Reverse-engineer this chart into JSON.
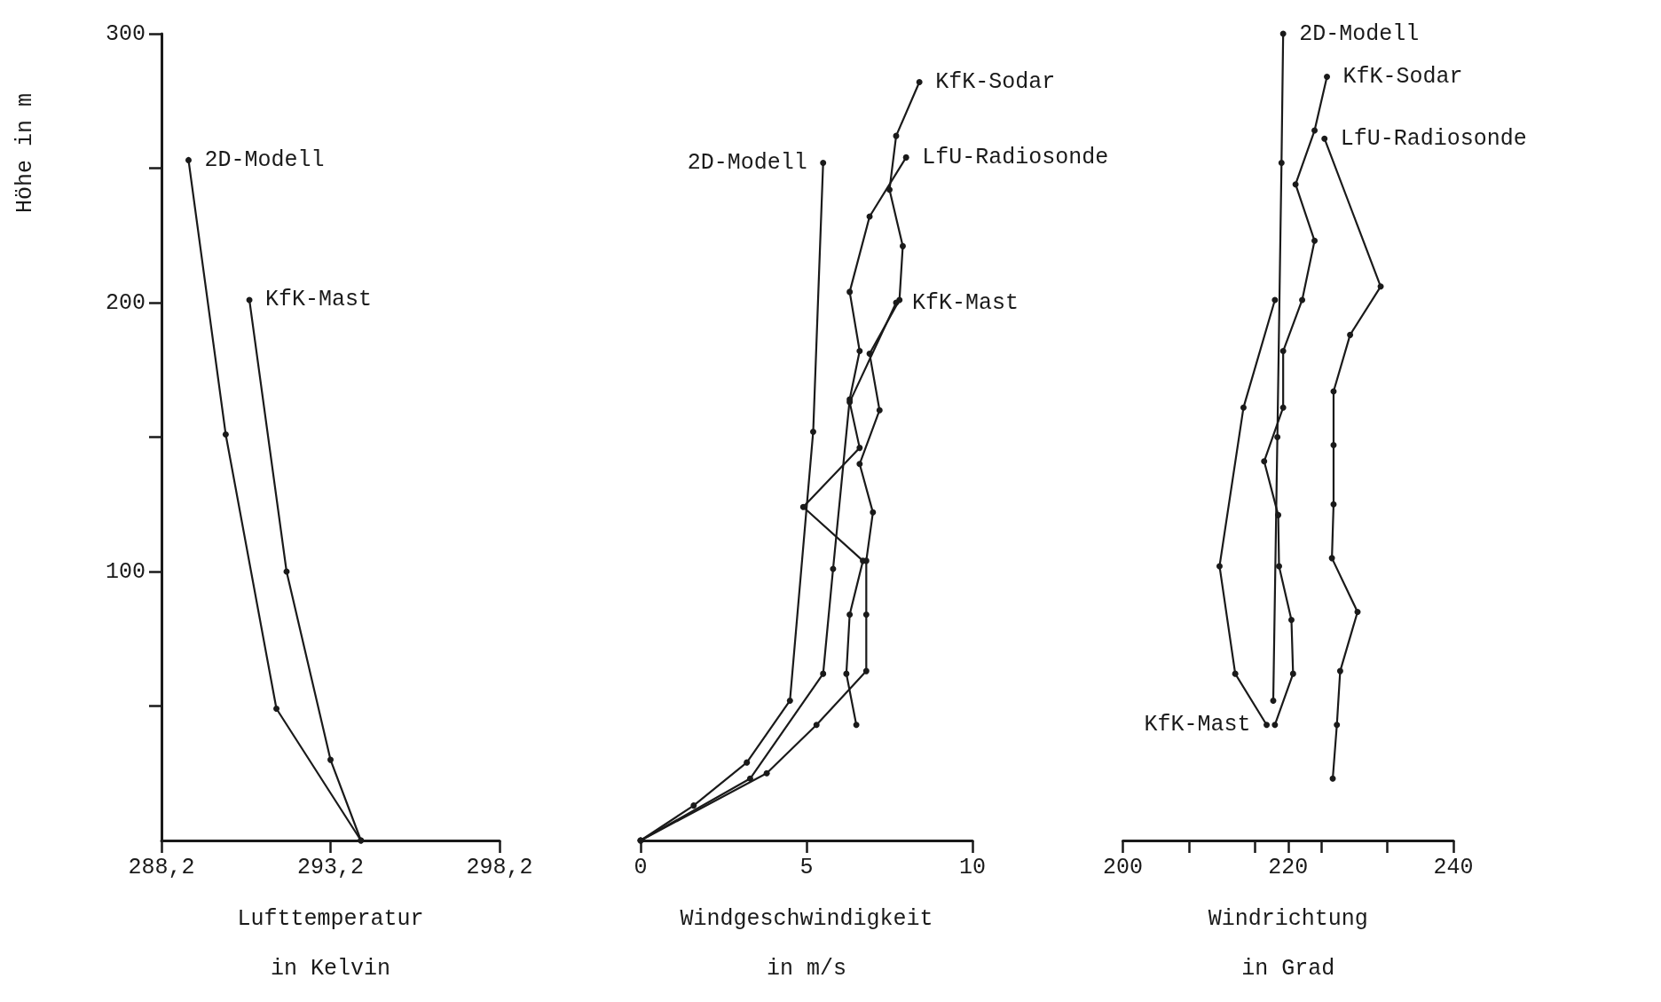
{
  "chart_data": [
    {
      "type": "line",
      "xlabel": "Lufttemperatur\nin Kelvin",
      "ylabel": "Höhe in m",
      "xlim": [
        288.2,
        298.2
      ],
      "xticks": [
        {
          "value": 288.2,
          "label": "288,2"
        },
        {
          "value": 293.2,
          "label": "293,2"
        },
        {
          "value": 298.2,
          "label": "298,2"
        }
      ],
      "ylim": [
        0,
        300
      ],
      "yticks": [
        {
          "value": 50,
          "label": null
        },
        100,
        {
          "value": 150,
          "label": null
        },
        200,
        {
          "value": 250,
          "label": null
        },
        300
      ],
      "marker": "circle",
      "grid": false,
      "legend": false,
      "series": [
        {
          "name": "2D-Modell",
          "color": "#1a1a1a",
          "x": [
            294.1,
            291.6,
            290.1,
            289.0
          ],
          "values": [
            0,
            49,
            151,
            253
          ]
        },
        {
          "name": "KfK-Mast",
          "color": "#1a1a1a",
          "x": [
            294.1,
            293.2,
            291.9,
            290.8
          ],
          "values": [
            0,
            30,
            100,
            201
          ]
        }
      ]
    },
    {
      "type": "line",
      "xlabel": "Windgeschwindigkeit\nin m/s",
      "xlim": [
        0,
        10
      ],
      "xticks": [
        0,
        5,
        10
      ],
      "ylim": [
        0,
        300
      ],
      "tick_labels": "x",
      "marker": "circle",
      "grid": false,
      "legend": false,
      "series": [
        {
          "name": "2D-Modell",
          "color": "#1a1a1a",
          "x": [
            0,
            1.6,
            3.2,
            4.5,
            5.2,
            5.5
          ],
          "values": [
            0,
            13,
            29,
            52,
            152,
            252
          ]
        },
        {
          "name": "KfK-Sodar",
          "color": "#1a1a1a",
          "x": [
            0,
            3.8,
            5.3,
            6.8,
            6.8,
            6.8,
            7.0,
            6.6,
            7.2,
            6.9,
            7.8,
            7.9,
            7.5,
            7.7,
            8.4
          ],
          "values": [
            0,
            25,
            43,
            63,
            84,
            104,
            122,
            140,
            160,
            181,
            201,
            221,
            242,
            262,
            282
          ]
        },
        {
          "name": "LfU-Radiosonde",
          "color": "#1a1a1a",
          "x": [
            0,
            3.3,
            5.5,
            5.8,
            6.3,
            6.6,
            6.3,
            6.9,
            8.0
          ],
          "values": [
            0,
            23,
            62,
            101,
            164,
            182,
            204,
            232,
            254
          ]
        },
        {
          "name": "KfK-Mast",
          "color": "#1a1a1a",
          "x": [
            6.5,
            6.2,
            6.3,
            6.7,
            4.9,
            6.6,
            6.3,
            7.7
          ],
          "values": [
            43,
            62,
            84,
            104,
            124,
            146,
            163,
            200
          ]
        }
      ]
    },
    {
      "type": "line",
      "xlabel": "Windrichtung\nin Grad",
      "xlim": [
        200,
        240
      ],
      "xticks": [
        200,
        {
          "value": 208,
          "label": null
        },
        {
          "value": 216,
          "label": null
        },
        220,
        {
          "value": 224,
          "label": null
        },
        {
          "value": 232,
          "label": null
        },
        240
      ],
      "ylim": [
        0,
        300
      ],
      "tick_labels": "x",
      "marker": "circle",
      "grid": false,
      "legend": false,
      "series": [
        {
          "name": "2D-Modell",
          "color": "#1a1a1a",
          "x": [
            218.2,
            218.7,
            219.2,
            219.4
          ],
          "values": [
            52,
            150,
            252,
            300
          ]
        },
        {
          "name": "KfK-Sodar",
          "color": "#1a1a1a",
          "x": [
            218.4,
            220.6,
            220.4,
            218.9,
            218.8,
            217.1,
            219.4,
            219.4,
            221.7,
            223.2,
            220.9,
            223.2,
            224.7
          ],
          "values": [
            43,
            62,
            82,
            102,
            121,
            141,
            161,
            182,
            201,
            223,
            244,
            264,
            284
          ]
        },
        {
          "name": "LfU-Radiosonde",
          "color": "#1a1a1a",
          "x": [
            225.4,
            225.9,
            226.3,
            228.4,
            225.3,
            225.5,
            225.5,
            225.5,
            227.5,
            231.2,
            224.4
          ],
          "values": [
            23,
            43,
            63,
            85,
            105,
            125,
            147,
            167,
            188,
            206,
            261
          ]
        },
        {
          "name": "KfK-Mast",
          "color": "#1a1a1a",
          "x": [
            218.4,
            214.6,
            211.7,
            213.6,
            217.4
          ],
          "values": [
            201,
            161,
            102,
            62,
            43
          ]
        }
      ]
    }
  ]
}
